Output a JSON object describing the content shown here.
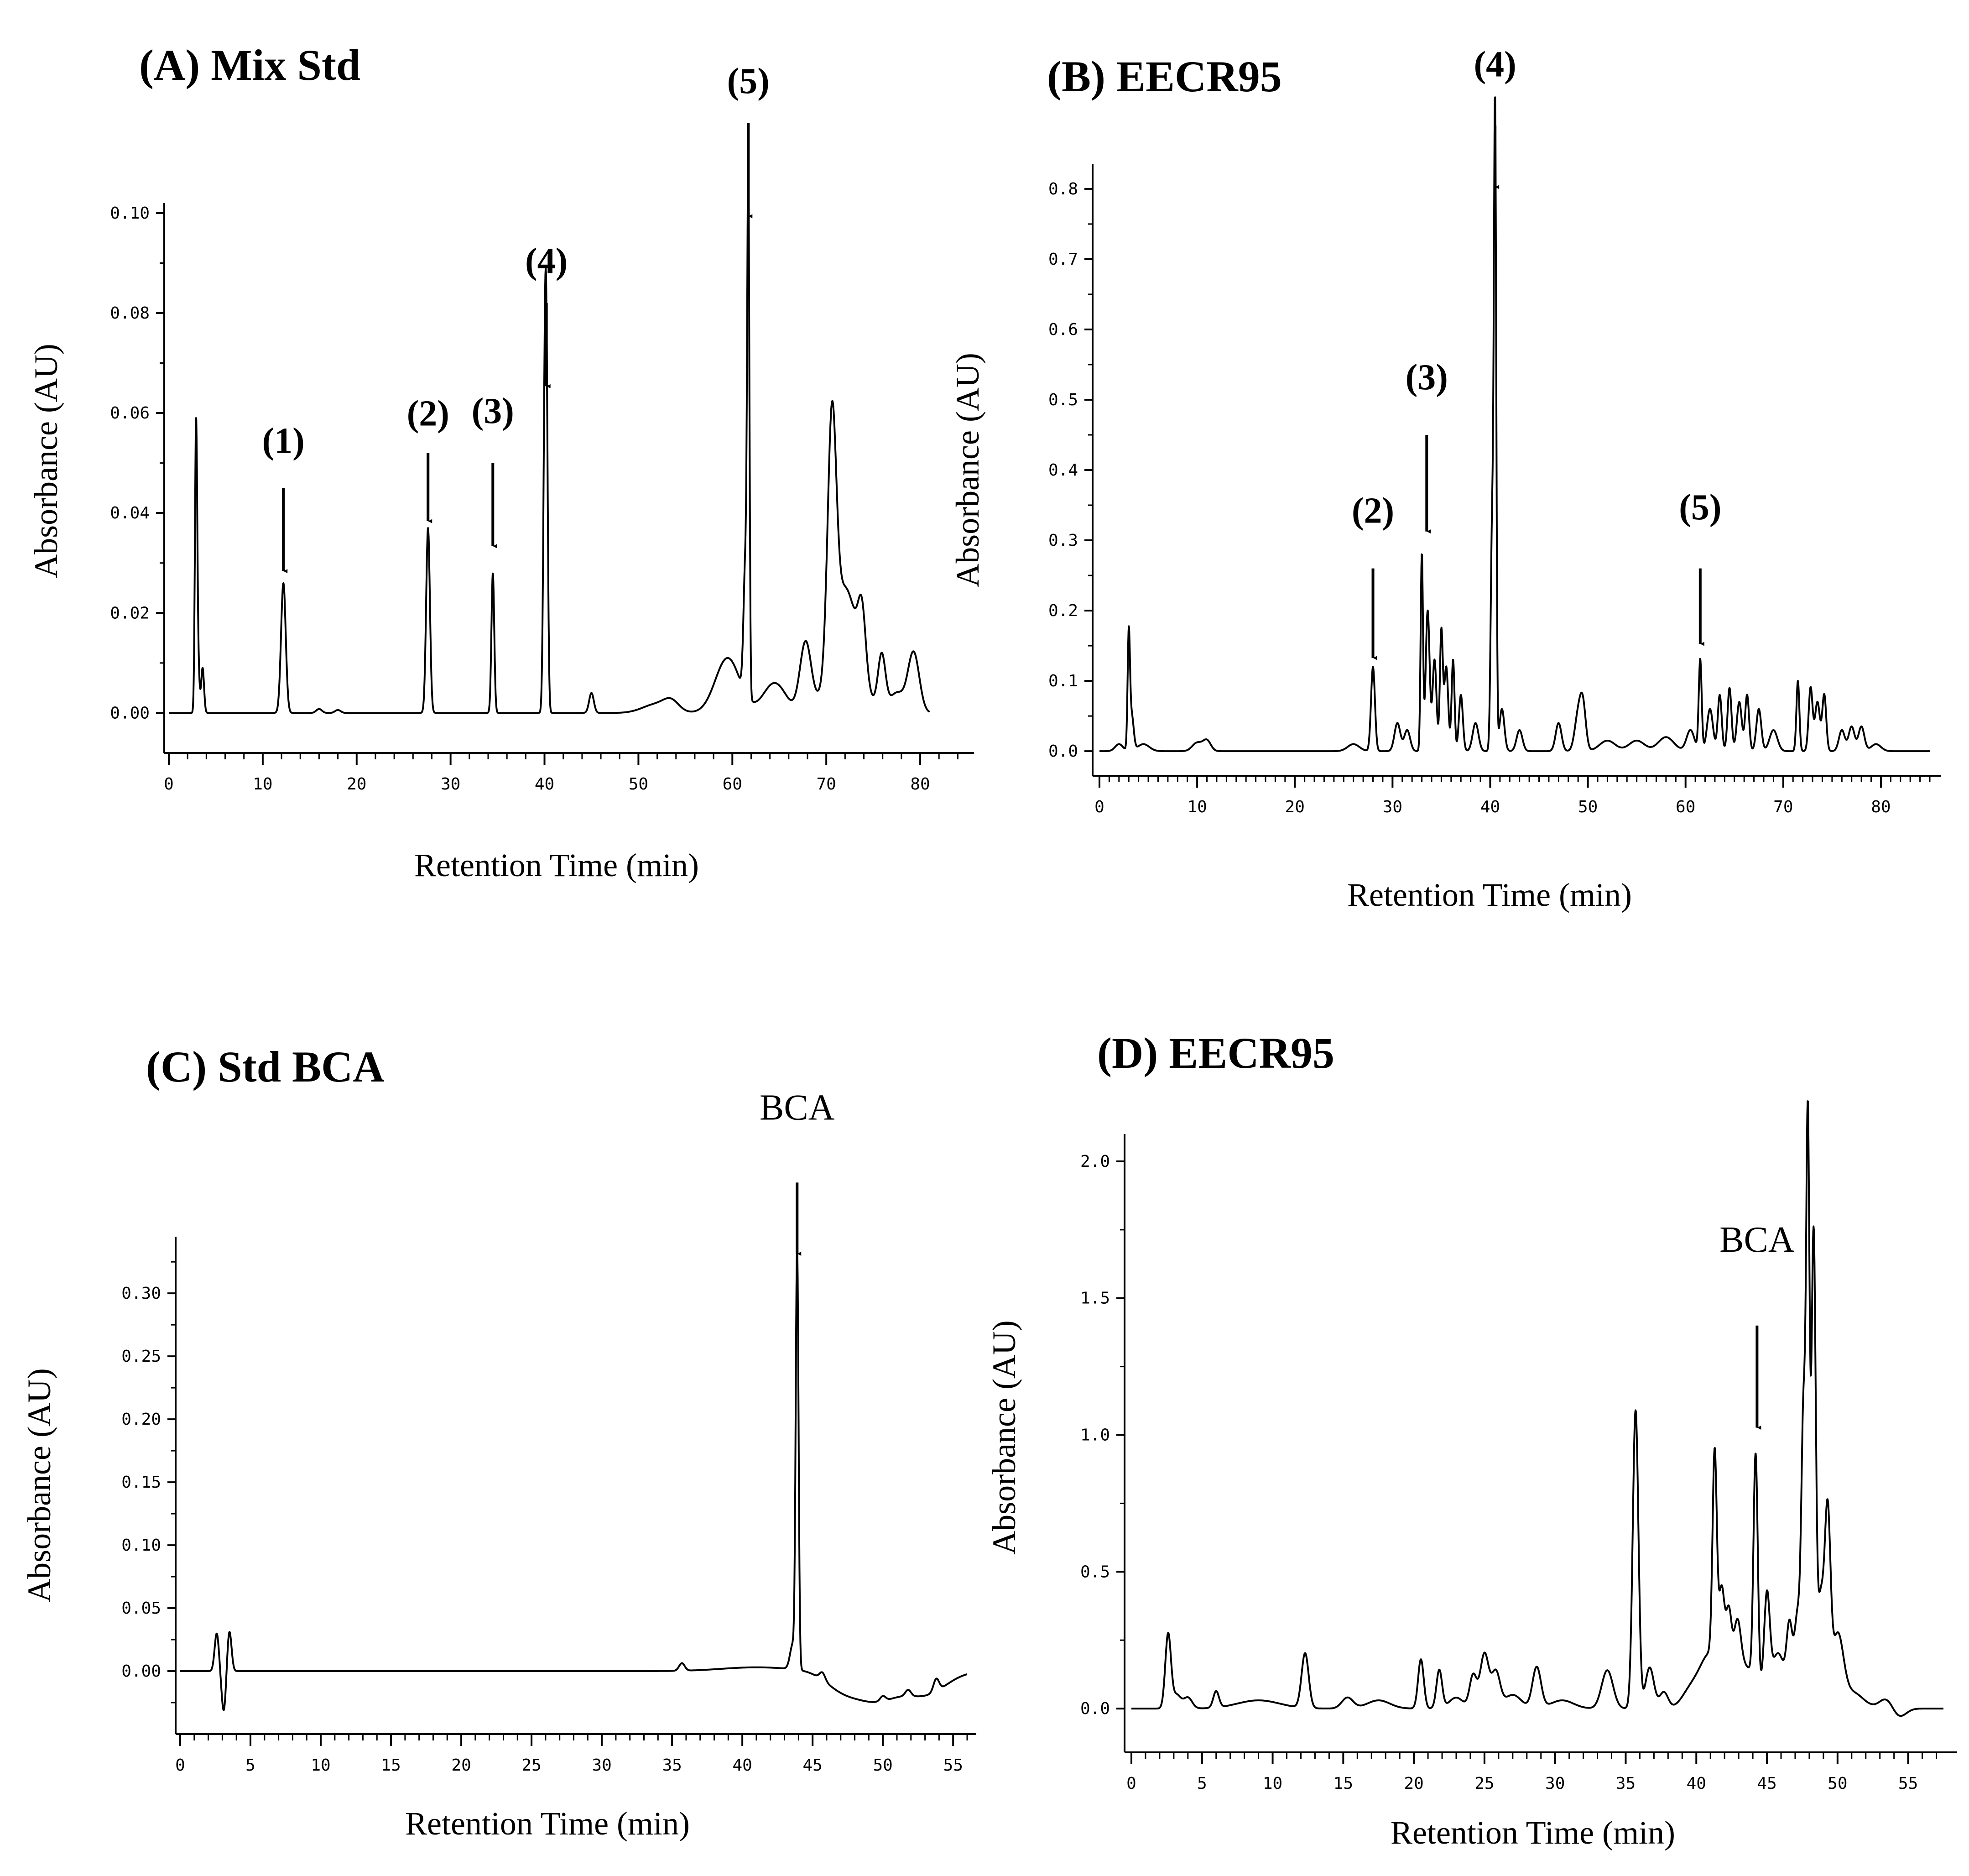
{
  "chart_data": [
    {
      "panel": "A",
      "type": "line",
      "title": "(A) Mix Std",
      "xlabel": "Retention Time (min)",
      "ylabel": "Absorbance (AU)",
      "xlim": [
        0,
        85
      ],
      "ylim": [
        -0.008,
        0.102
      ],
      "xticks": [
        0,
        10,
        20,
        30,
        40,
        50,
        60,
        70,
        80
      ],
      "xtick_labels": [
        "0",
        "10",
        "20",
        "30",
        "40",
        "50",
        "60",
        "70",
        "80"
      ],
      "yticks": [
        0.0,
        0.02,
        0.04,
        0.06,
        0.08,
        0.1
      ],
      "ytick_labels": [
        "0.00",
        "0.02",
        "0.04",
        "0.06",
        "0.08",
        "0.10"
      ],
      "minor_x_step": 2,
      "baseline": 0.0,
      "x_end": 81,
      "peaks": [
        {
          "t": 2.9,
          "h": 0.055,
          "w": 0.12
        },
        {
          "t": 3.1,
          "h": 0.01,
          "w": 0.15
        },
        {
          "t": 3.6,
          "h": 0.009,
          "w": 0.15
        },
        {
          "t": 12.2,
          "h": 0.026,
          "w": 0.25
        },
        {
          "t": 16.0,
          "h": 0.0008,
          "w": 0.3
        },
        {
          "t": 18.0,
          "h": 0.0006,
          "w": 0.3
        },
        {
          "t": 27.6,
          "h": 0.037,
          "w": 0.2
        },
        {
          "t": 34.5,
          "h": 0.028,
          "w": 0.15
        },
        {
          "t": 40.2,
          "h": 0.064,
          "w": 0.15
        },
        {
          "t": 40.0,
          "h": 0.046,
          "w": 0.15
        },
        {
          "t": 45.0,
          "h": 0.004,
          "w": 0.25
        },
        {
          "t": 52.0,
          "h": 0.0018,
          "w": 1.5
        },
        {
          "t": 53.5,
          "h": 0.0018,
          "w": 0.8
        },
        {
          "t": 59.5,
          "h": 0.011,
          "w": 1.3
        },
        {
          "t": 61.7,
          "h": 0.098,
          "w": 0.12
        },
        {
          "t": 61.4,
          "h": 0.027,
          "w": 0.2
        },
        {
          "t": 64.5,
          "h": 0.006,
          "w": 1.2
        },
        {
          "t": 67.8,
          "h": 0.014,
          "w": 0.6
        },
        {
          "t": 70.6,
          "h": 0.047,
          "w": 0.45
        },
        {
          "t": 72.0,
          "h": 0.025,
          "w": 1.4
        },
        {
          "t": 73.8,
          "h": 0.012,
          "w": 0.4
        },
        {
          "t": 75.9,
          "h": 0.011,
          "w": 0.4
        },
        {
          "t": 77.5,
          "h": 0.004,
          "w": 0.8
        },
        {
          "t": 79.3,
          "h": 0.012,
          "w": 0.6
        }
      ],
      "annotations": [
        {
          "label": "(1)",
          "x": 12.2,
          "y_tip": 0.028,
          "y_start": 0.045,
          "style": "bold",
          "label_y": 0.052
        },
        {
          "label": "(2)",
          "x": 27.6,
          "y_tip": 0.038,
          "y_start": 0.052,
          "style": "bold",
          "label_y": 0.0575
        },
        {
          "label": "(3)",
          "x": 34.5,
          "y_tip": 0.033,
          "y_start": 0.05,
          "style": "bold",
          "label_y": 0.058
        },
        {
          "label": "(4)",
          "x": 40.2,
          "y_tip": 0.065,
          "y_start": 0.082,
          "style": "bold",
          "label_y": 0.088
        },
        {
          "label": "(5)",
          "x": 61.7,
          "y_tip": 0.099,
          "y_start": 0.118,
          "style": "bold",
          "label_y": 0.124
        }
      ]
    },
    {
      "panel": "B",
      "type": "line",
      "title": "(B) EECR95",
      "xlabel": "Retention Time (min)",
      "ylabel": "Absorbance (AU)",
      "xlim": [
        0,
        85
      ],
      "ylim": [
        -0.035,
        0.835
      ],
      "xticks": [
        0,
        10,
        20,
        30,
        40,
        50,
        60,
        70,
        80
      ],
      "xtick_labels": [
        "0",
        "10",
        "20",
        "30",
        "40",
        "50",
        "60",
        "70",
        "80"
      ],
      "yticks": [
        0.0,
        0.1,
        0.2,
        0.3,
        0.4,
        0.5,
        0.6,
        0.7,
        0.8
      ],
      "ytick_labels": [
        "0.0",
        "0.1",
        "0.2",
        "0.3",
        "0.4",
        "0.5",
        "0.6",
        "0.7",
        "0.8"
      ],
      "minor_x_step": 1,
      "baseline": 0.0,
      "x_end": 85,
      "peaks": [
        {
          "t": 2.0,
          "h": 0.01,
          "w": 0.4
        },
        {
          "t": 3.0,
          "h": 0.16,
          "w": 0.12
        },
        {
          "t": 3.3,
          "h": 0.05,
          "w": 0.2
        },
        {
          "t": 4.5,
          "h": 0.01,
          "w": 0.6
        },
        {
          "t": 10.0,
          "h": 0.012,
          "w": 0.5
        },
        {
          "t": 11.0,
          "h": 0.015,
          "w": 0.4
        },
        {
          "t": 26.0,
          "h": 0.01,
          "w": 0.6
        },
        {
          "t": 28.0,
          "h": 0.12,
          "w": 0.2
        },
        {
          "t": 30.5,
          "h": 0.04,
          "w": 0.3
        },
        {
          "t": 31.5,
          "h": 0.03,
          "w": 0.3
        },
        {
          "t": 33.0,
          "h": 0.28,
          "w": 0.12
        },
        {
          "t": 33.6,
          "h": 0.2,
          "w": 0.2
        },
        {
          "t": 34.3,
          "h": 0.13,
          "w": 0.2
        },
        {
          "t": 35.0,
          "h": 0.17,
          "w": 0.15
        },
        {
          "t": 35.5,
          "h": 0.12,
          "w": 0.2
        },
        {
          "t": 36.2,
          "h": 0.13,
          "w": 0.15
        },
        {
          "t": 37.0,
          "h": 0.08,
          "w": 0.2
        },
        {
          "t": 38.5,
          "h": 0.04,
          "w": 0.3
        },
        {
          "t": 40.5,
          "h": 0.89,
          "w": 0.12
        },
        {
          "t": 40.2,
          "h": 0.32,
          "w": 0.15
        },
        {
          "t": 41.2,
          "h": 0.06,
          "w": 0.25
        },
        {
          "t": 43.0,
          "h": 0.03,
          "w": 0.3
        },
        {
          "t": 47.0,
          "h": 0.04,
          "w": 0.3
        },
        {
          "t": 49.0,
          "h": 0.05,
          "w": 0.35
        },
        {
          "t": 49.5,
          "h": 0.06,
          "w": 0.3
        },
        {
          "t": 52.0,
          "h": 0.015,
          "w": 0.8
        },
        {
          "t": 55.0,
          "h": 0.015,
          "w": 0.8
        },
        {
          "t": 58.0,
          "h": 0.02,
          "w": 0.8
        },
        {
          "t": 60.5,
          "h": 0.03,
          "w": 0.4
        },
        {
          "t": 61.5,
          "h": 0.13,
          "w": 0.15
        },
        {
          "t": 62.5,
          "h": 0.06,
          "w": 0.3
        },
        {
          "t": 63.5,
          "h": 0.08,
          "w": 0.2
        },
        {
          "t": 64.5,
          "h": 0.09,
          "w": 0.2
        },
        {
          "t": 65.5,
          "h": 0.07,
          "w": 0.25
        },
        {
          "t": 66.3,
          "h": 0.08,
          "w": 0.2
        },
        {
          "t": 67.5,
          "h": 0.06,
          "w": 0.25
        },
        {
          "t": 69.0,
          "h": 0.03,
          "w": 0.4
        },
        {
          "t": 71.5,
          "h": 0.1,
          "w": 0.15
        },
        {
          "t": 72.8,
          "h": 0.09,
          "w": 0.2
        },
        {
          "t": 73.5,
          "h": 0.07,
          "w": 0.25
        },
        {
          "t": 74.2,
          "h": 0.08,
          "w": 0.2
        },
        {
          "t": 76.0,
          "h": 0.03,
          "w": 0.3
        },
        {
          "t": 77.0,
          "h": 0.035,
          "w": 0.3
        },
        {
          "t": 78.0,
          "h": 0.035,
          "w": 0.3
        },
        {
          "t": 79.5,
          "h": 0.01,
          "w": 0.5
        }
      ],
      "annotations": [
        {
          "label": "(2)",
          "x": 28.0,
          "y_tip": 0.13,
          "y_start": 0.26,
          "style": "bold",
          "label_y": 0.325
        },
        {
          "label": "(3)",
          "x": 33.5,
          "y_tip": 0.31,
          "y_start": 0.45,
          "style": "bold",
          "label_y": 0.515
        },
        {
          "label": "(4)",
          "x": 40.5,
          "y_tip": 0.8,
          "y_start": 0.89,
          "style": "bold",
          "label_y": 0.96
        },
        {
          "label": "(5)",
          "x": 61.5,
          "y_tip": 0.15,
          "y_start": 0.26,
          "style": "bold",
          "label_y": 0.33
        }
      ]
    },
    {
      "panel": "C",
      "type": "line",
      "title": "(C) Std BCA",
      "xlabel": "Retention Time (min)",
      "ylabel": "Absorbance (AU)",
      "xlim": [
        0,
        56
      ],
      "ylim": [
        -0.05,
        0.345
      ],
      "xticks": [
        0,
        5,
        10,
        15,
        20,
        25,
        30,
        35,
        40,
        45,
        50,
        55
      ],
      "xtick_labels": [
        "0",
        "5",
        "10",
        "15",
        "20",
        "25",
        "30",
        "35",
        "40",
        "45",
        "50",
        "55"
      ],
      "yticks": [
        0.0,
        0.05,
        0.1,
        0.15,
        0.2,
        0.25,
        0.3
      ],
      "ytick_labels": [
        "0.00",
        "0.05",
        "0.10",
        "0.15",
        "0.20",
        "0.25",
        "0.30"
      ],
      "minor_x_step": 1,
      "baseline": 0.0,
      "x_end": 56,
      "peaks": [
        {
          "t": 2.6,
          "h": 0.03,
          "w": 0.15
        },
        {
          "t": 3.1,
          "h": -0.032,
          "w": 0.15
        },
        {
          "t": 3.5,
          "h": 0.032,
          "w": 0.15
        },
        {
          "t": 35.7,
          "h": 0.006,
          "w": 0.2
        },
        {
          "t": 41.0,
          "h": 0.003,
          "w": 2.5
        },
        {
          "t": 43.9,
          "h": 0.33,
          "w": 0.1
        },
        {
          "t": 43.6,
          "h": 0.02,
          "w": 0.2
        },
        {
          "t": 45.7,
          "h": 0.006,
          "w": 0.2
        },
        {
          "t": 47.0,
          "h": -0.012,
          "w": 1.2
        },
        {
          "t": 49.5,
          "h": -0.022,
          "w": 1.5
        },
        {
          "t": 50.0,
          "h": 0.004,
          "w": 0.2
        },
        {
          "t": 51.8,
          "h": 0.005,
          "w": 0.2
        },
        {
          "t": 53.0,
          "h": -0.018,
          "w": 1.5
        },
        {
          "t": 53.8,
          "h": 0.01,
          "w": 0.2
        }
      ],
      "annotations": [
        {
          "label": "BCA",
          "x": 43.9,
          "y_tip": 0.33,
          "y_start": 0.388,
          "style": "plain",
          "label_y": 0.438
        }
      ]
    },
    {
      "panel": "D",
      "type": "line",
      "title": "(D) EECR95",
      "xlabel": "Retention Time (min)",
      "ylabel": "Absorbance (AU)",
      "xlim": [
        0,
        57.5
      ],
      "ylim": [
        -0.16,
        2.1
      ],
      "xticks": [
        0,
        5,
        10,
        15,
        20,
        25,
        30,
        35,
        40,
        45,
        50,
        55
      ],
      "xtick_labels": [
        "0",
        "5",
        "10",
        "15",
        "20",
        "25",
        "30",
        "35",
        "40",
        "45",
        "50",
        "55"
      ],
      "yticks": [
        0.0,
        0.5,
        1.0,
        1.5,
        2.0
      ],
      "ytick_labels": [
        "0.0",
        "0.5",
        "1.0",
        "1.5",
        "2.0"
      ],
      "minor_x_step": 1,
      "baseline": 0.0,
      "x_end": 57.5,
      "peaks": [
        {
          "t": 2.6,
          "h": 0.27,
          "w": 0.2
        },
        {
          "t": 3.2,
          "h": 0.05,
          "w": 0.3
        },
        {
          "t": 4.0,
          "h": 0.04,
          "w": 0.3
        },
        {
          "t": 6.0,
          "h": 0.06,
          "w": 0.2
        },
        {
          "t": 9.0,
          "h": 0.03,
          "w": 1.5
        },
        {
          "t": 12.3,
          "h": 0.2,
          "w": 0.25
        },
        {
          "t": 15.3,
          "h": 0.04,
          "w": 0.4
        },
        {
          "t": 17.5,
          "h": 0.03,
          "w": 0.8
        },
        {
          "t": 20.5,
          "h": 0.18,
          "w": 0.2
        },
        {
          "t": 21.8,
          "h": 0.14,
          "w": 0.2
        },
        {
          "t": 23.0,
          "h": 0.04,
          "w": 0.5
        },
        {
          "t": 24.2,
          "h": 0.12,
          "w": 0.25
        },
        {
          "t": 25.0,
          "h": 0.2,
          "w": 0.3
        },
        {
          "t": 25.8,
          "h": 0.13,
          "w": 0.3
        },
        {
          "t": 27.0,
          "h": 0.05,
          "w": 0.6
        },
        {
          "t": 28.7,
          "h": 0.15,
          "w": 0.3
        },
        {
          "t": 30.5,
          "h": 0.03,
          "w": 0.8
        },
        {
          "t": 33.7,
          "h": 0.14,
          "w": 0.4
        },
        {
          "t": 35.7,
          "h": 1.09,
          "w": 0.2
        },
        {
          "t": 36.7,
          "h": 0.15,
          "w": 0.3
        },
        {
          "t": 37.7,
          "h": 0.06,
          "w": 0.3
        },
        {
          "t": 39.5,
          "h": 0.05,
          "w": 0.6
        },
        {
          "t": 41.0,
          "h": 0.2,
          "w": 0.8
        },
        {
          "t": 41.3,
          "h": 0.75,
          "w": 0.15
        },
        {
          "t": 41.8,
          "h": 0.3,
          "w": 0.2
        },
        {
          "t": 42.3,
          "h": 0.25,
          "w": 0.2
        },
        {
          "t": 42.9,
          "h": 0.2,
          "w": 0.25
        },
        {
          "t": 43.5,
          "h": 0.15,
          "w": 0.8
        },
        {
          "t": 44.2,
          "h": 0.83,
          "w": 0.15
        },
        {
          "t": 45.0,
          "h": 0.35,
          "w": 0.2
        },
        {
          "t": 45.8,
          "h": 0.2,
          "w": 0.5
        },
        {
          "t": 46.6,
          "h": 0.25,
          "w": 0.2
        },
        {
          "t": 47.2,
          "h": 0.35,
          "w": 0.25
        },
        {
          "t": 47.9,
          "h": 2.03,
          "w": 0.12
        },
        {
          "t": 47.6,
          "h": 1.0,
          "w": 0.15
        },
        {
          "t": 48.3,
          "h": 1.7,
          "w": 0.15
        },
        {
          "t": 48.8,
          "h": 0.4,
          "w": 0.25
        },
        {
          "t": 49.3,
          "h": 0.65,
          "w": 0.2
        },
        {
          "t": 50.0,
          "h": 0.25,
          "w": 0.4
        },
        {
          "t": 51.0,
          "h": 0.06,
          "w": 0.8
        },
        {
          "t": 53.5,
          "h": 0.04,
          "w": 0.5
        },
        {
          "t": 54.3,
          "h": -0.035,
          "w": 0.5
        }
      ],
      "annotations": [
        {
          "label": "BCA",
          "x": 44.3,
          "y_tip": 1.02,
          "y_start": 1.4,
          "style": "plain",
          "label_y": 1.67
        }
      ]
    }
  ]
}
